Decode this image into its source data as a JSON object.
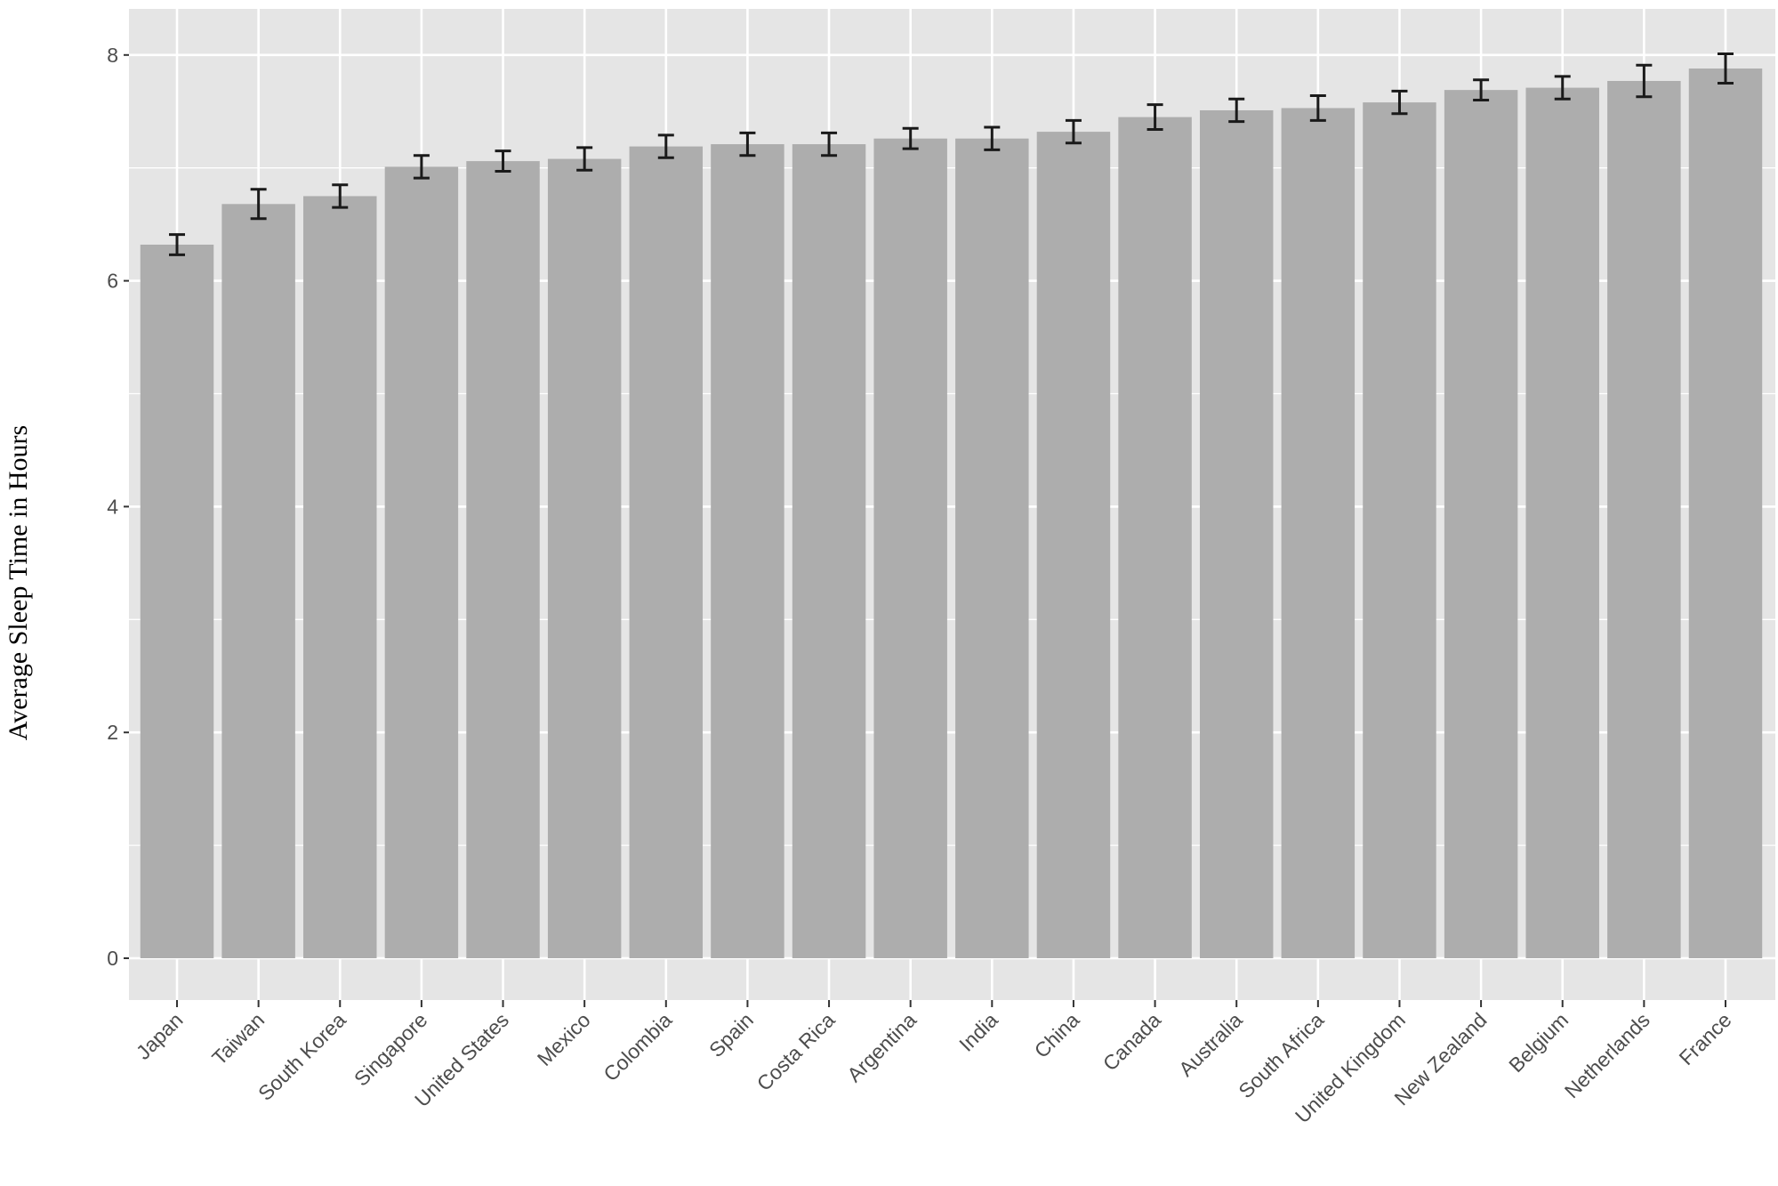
{
  "chart_data": {
    "type": "bar",
    "title": "",
    "xlabel": "",
    "ylabel": "Average Sleep Time in Hours",
    "ylim": [
      0,
      8.4
    ],
    "yticks": [
      0,
      2,
      4,
      6,
      8
    ],
    "grid": true,
    "legend": "none",
    "categories": [
      "Japan",
      "Taiwan",
      "South Korea",
      "Singapore",
      "United States",
      "Mexico",
      "Colombia",
      "Spain",
      "Costa Rica",
      "Argentina",
      "India",
      "China",
      "Canada",
      "Australia",
      "South Africa",
      "United Kingdom",
      "New Zealand",
      "Belgium",
      "Netherlands",
      "France"
    ],
    "values": [
      6.32,
      6.68,
      6.75,
      7.01,
      7.06,
      7.08,
      7.19,
      7.21,
      7.21,
      7.26,
      7.26,
      7.32,
      7.45,
      7.51,
      7.53,
      7.58,
      7.69,
      7.71,
      7.77,
      7.88
    ],
    "error": [
      0.09,
      0.13,
      0.1,
      0.1,
      0.09,
      0.1,
      0.1,
      0.1,
      0.1,
      0.09,
      0.1,
      0.1,
      0.11,
      0.1,
      0.11,
      0.1,
      0.09,
      0.1,
      0.14,
      0.13
    ],
    "colors": {
      "panel": "#e5e5e5",
      "bar": "#adadad",
      "grid": "#ffffff",
      "errorbar": "#1a1a1a"
    }
  }
}
